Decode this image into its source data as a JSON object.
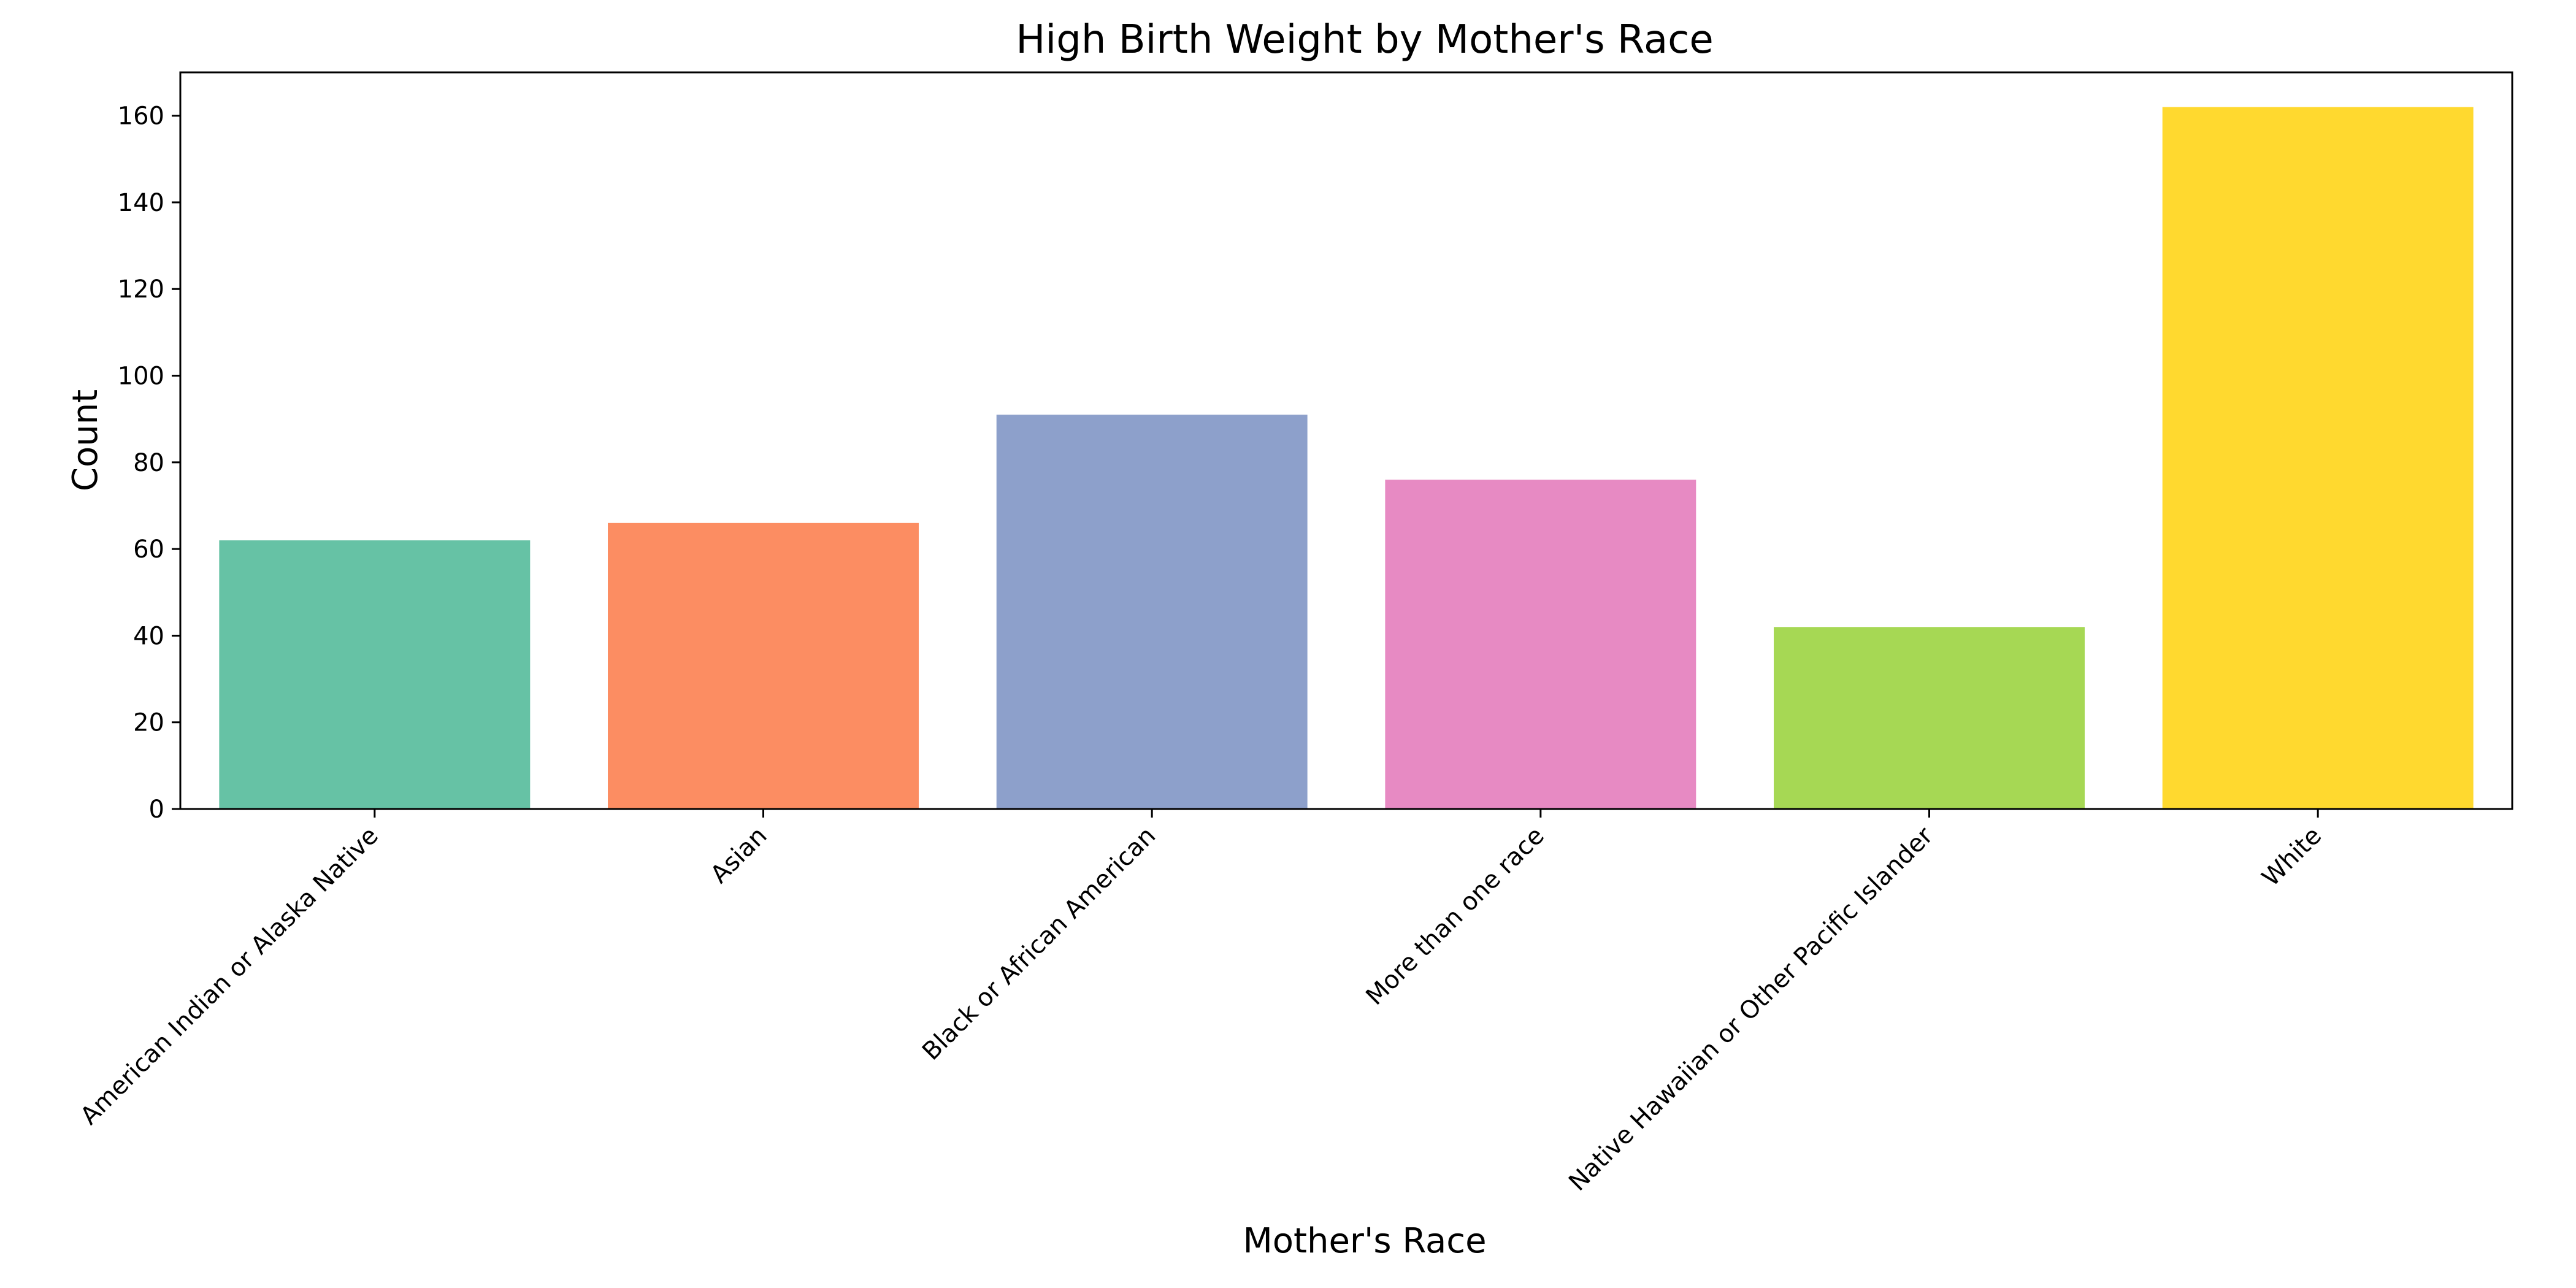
{
  "chart_data": {
    "type": "bar",
    "title": "High Birth Weight by Mother's Race",
    "xlabel": "Mother's Race",
    "ylabel": "Count",
    "categories": [
      "American Indian or Alaska Native",
      "Asian",
      "Black or African American",
      "More than one race",
      "Native Hawaiian or Other Pacific Islander",
      "White"
    ],
    "values": [
      62,
      66,
      91,
      76,
      42,
      162
    ],
    "colors": [
      "#66c2a5",
      "#fc8d62",
      "#8da0cb",
      "#e78ac3",
      "#a6d854",
      "#ffd92f"
    ],
    "ylim": [
      0,
      170
    ],
    "yticks": [
      0,
      20,
      40,
      60,
      80,
      100,
      120,
      140,
      160
    ],
    "grid": false,
    "legend": "none"
  }
}
